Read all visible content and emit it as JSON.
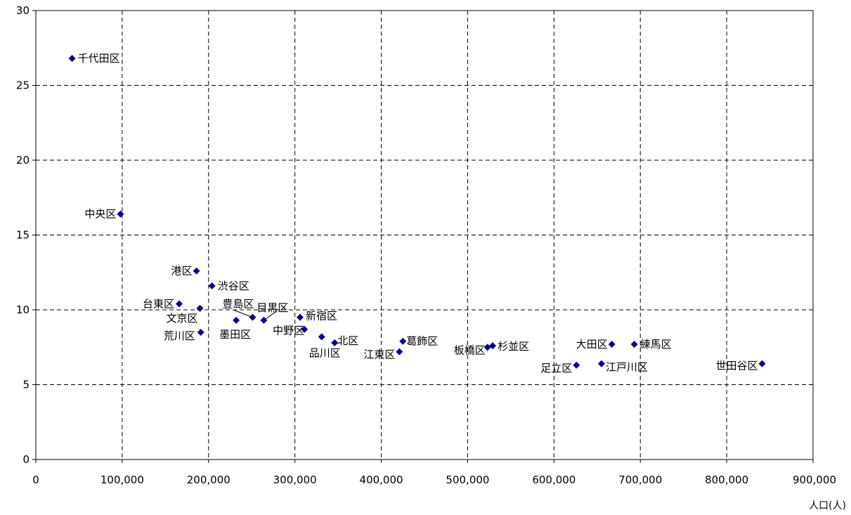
{
  "chart_data": {
    "type": "scatter",
    "title": "",
    "xlabel": "人口(人)",
    "ylabel": "",
    "xlim": [
      0,
      900000
    ],
    "ylim": [
      0,
      30
    ],
    "grid": true,
    "grid_style": "dashed",
    "legend": "none",
    "marker": "diamond",
    "marker_color": "#000080",
    "x_ticks": [
      "0",
      "100,000",
      "200,000",
      "300,000",
      "400,000",
      "500,000",
      "600,000",
      "700,000",
      "800,000",
      "900,000"
    ],
    "y_ticks": [
      "0",
      "5",
      "10",
      "15",
      "20",
      "25",
      "30"
    ],
    "points": [
      {
        "label": "千代田区",
        "x": 42000,
        "y": 26.8
      },
      {
        "label": "中央区",
        "x": 98000,
        "y": 16.4
      },
      {
        "label": "港区",
        "x": 186000,
        "y": 12.6
      },
      {
        "label": "渋谷区",
        "x": 204000,
        "y": 11.6
      },
      {
        "label": "台東区",
        "x": 166000,
        "y": 10.4
      },
      {
        "label": "文京区",
        "x": 190000,
        "y": 10.1
      },
      {
        "label": "荒川区",
        "x": 191000,
        "y": 8.5
      },
      {
        "label": "豊島区",
        "x": 251000,
        "y": 9.5
      },
      {
        "label": "墨田区",
        "x": 232000,
        "y": 9.3
      },
      {
        "label": "目黒区",
        "x": 264000,
        "y": 9.3
      },
      {
        "label": "新宿区",
        "x": 306000,
        "y": 9.5
      },
      {
        "label": "中野区",
        "x": 311000,
        "y": 8.7
      },
      {
        "label": "品川区",
        "x": 331000,
        "y": 8.2
      },
      {
        "label": "北区",
        "x": 346000,
        "y": 7.8
      },
      {
        "label": "葛飾区",
        "x": 425000,
        "y": 7.9
      },
      {
        "label": "江東区",
        "x": 421000,
        "y": 7.2
      },
      {
        "label": "板橋区",
        "x": 523000,
        "y": 7.5
      },
      {
        "label": "杉並区",
        "x": 529000,
        "y": 7.6
      },
      {
        "label": "大田区",
        "x": 667000,
        "y": 7.7
      },
      {
        "label": "練馬区",
        "x": 693000,
        "y": 7.7
      },
      {
        "label": "足立区",
        "x": 626000,
        "y": 6.3
      },
      {
        "label": "江戸川区",
        "x": 655000,
        "y": 6.4
      },
      {
        "label": "世田谷区",
        "x": 841000,
        "y": 6.4
      }
    ]
  }
}
